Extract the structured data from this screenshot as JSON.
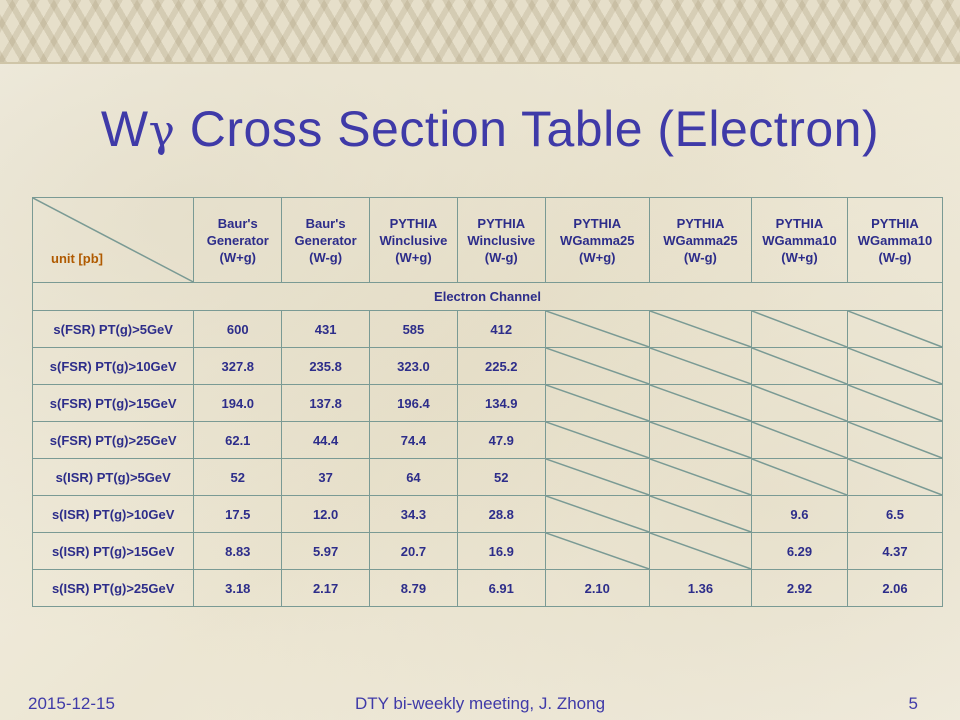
{
  "slide": {
    "title_prefix": "W",
    "title_gamma": "γ",
    "title_suffix": " Cross Section Table (Electron)"
  },
  "table": {
    "unit_label": "unit [pb]",
    "columns": [
      {
        "line1": "Baur's",
        "line2": "Generator",
        "charge": "(W+g)",
        "group": "baur"
      },
      {
        "line1": "Baur's",
        "line2": "Generator",
        "charge": "(W-g)",
        "group": "baur"
      },
      {
        "line1": "PYTHIA",
        "line2": "Winclusive",
        "charge": "(W+g)",
        "group": "incl"
      },
      {
        "line1": "PYTHIA",
        "line2": "Winclusive",
        "charge": "(W-g)",
        "group": "incl"
      },
      {
        "line1": "PYTHIA",
        "line2": "WGamma25",
        "charge": "(W+g)",
        "group": "g25"
      },
      {
        "line1": "PYTHIA",
        "line2": "WGamma25",
        "charge": "(W-g)",
        "group": "g25"
      },
      {
        "line1": "PYTHIA",
        "line2": "WGamma10",
        "charge": "(W+g)",
        "group": "g10"
      },
      {
        "line1": "PYTHIA",
        "line2": "WGamma10",
        "charge": "(W-g)",
        "group": "g10"
      }
    ],
    "section_label": "Electron Channel",
    "rows": [
      {
        "label": "s(FSR) PT(g)>5GeV",
        "values": [
          "600",
          "431",
          "585",
          "412",
          null,
          null,
          null,
          null
        ]
      },
      {
        "label": "s(FSR) PT(g)>10GeV",
        "values": [
          "327.8",
          "235.8",
          "323.0",
          "225.2",
          null,
          null,
          null,
          null
        ]
      },
      {
        "label": "s(FSR) PT(g)>15GeV",
        "values": [
          "194.0",
          "137.8",
          "196.4",
          "134.9",
          null,
          null,
          null,
          null
        ]
      },
      {
        "label": "s(FSR) PT(g)>25GeV",
        "values": [
          "62.1",
          "44.4",
          "74.4",
          "47.9",
          null,
          null,
          null,
          null
        ]
      },
      {
        "label": "s(ISR) PT(g)>5GeV",
        "values": [
          "52",
          "37",
          "64",
          "52",
          null,
          null,
          null,
          null
        ]
      },
      {
        "label": "s(ISR) PT(g)>10GeV",
        "values": [
          "17.5",
          "12.0",
          "34.3",
          "28.8",
          null,
          null,
          "9.6",
          "6.5"
        ]
      },
      {
        "label": "s(ISR) PT(g)>15GeV",
        "values": [
          "8.83",
          "5.97",
          "20.7",
          "16.9",
          null,
          null,
          "6.29",
          "4.37"
        ]
      },
      {
        "label": "s(ISR) PT(g)>25GeV",
        "values": [
          "3.18",
          "2.17",
          "8.79",
          "6.91",
          "2.10",
          "1.36",
          "2.92",
          "2.06"
        ]
      }
    ]
  },
  "footer": {
    "date": "2015-12-15",
    "event": "DTY bi-weekly meeting, J. Zhong",
    "page": "5"
  },
  "colors": {
    "title": "#3f3aa8",
    "baur": "#2d2d8a",
    "incl": "#1a5ac8",
    "g25": "#e06010",
    "g10": "#7a22c8",
    "border": "#7a9a94"
  }
}
